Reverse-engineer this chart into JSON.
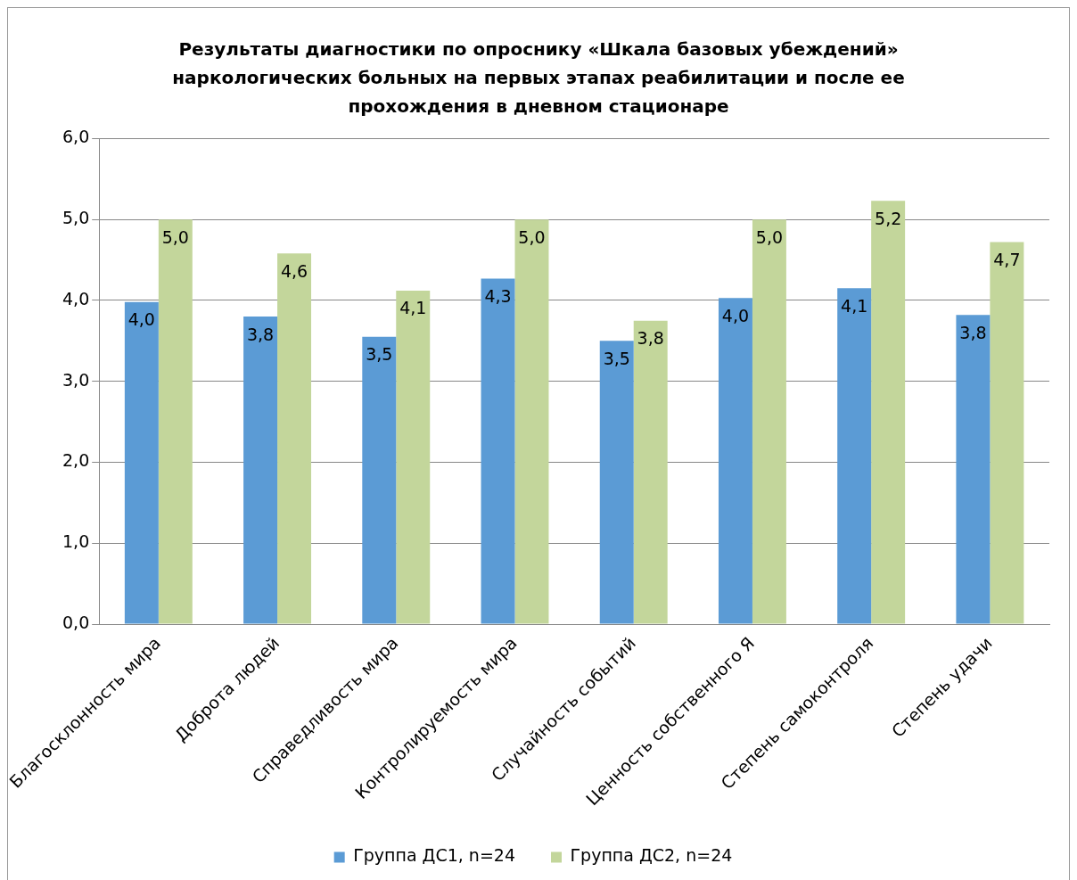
{
  "chart_data": {
    "type": "bar",
    "title": "Результаты диагностики по опроснику «Шкала базовых убеждений» наркологических больных на первых этапах реабилитации и после ее прохождения в дневном стационаре",
    "categories": [
      "Благосклонность мира",
      "Доброта людей",
      "Справедливость мира",
      "Контролируемость мира",
      "Случайность событий",
      "Ценность собственного Я",
      "Степень самоконтроля",
      "Степень удачи"
    ],
    "series": [
      {
        "name": "Группа ДС1, n=24",
        "color": "#5b9bd5",
        "values": [
          3.98,
          3.8,
          3.55,
          4.27,
          3.5,
          4.03,
          4.15,
          3.82
        ],
        "value_labels": [
          "4,0",
          "3,8",
          "3,5",
          "4,3",
          "3,5",
          "4,0",
          "4,1",
          "3,8"
        ]
      },
      {
        "name": "Группа ДС2, n=24",
        "color": "#c3d69b",
        "values": [
          5.0,
          4.58,
          4.12,
          5.0,
          3.75,
          5.0,
          5.23,
          4.72
        ],
        "value_labels": [
          "5,0",
          "4,6",
          "4,1",
          "5,0",
          "3,8",
          "5,0",
          "5,2",
          "4,7"
        ]
      }
    ],
    "ylim": [
      0,
      6
    ],
    "yticks": [
      {
        "value": 0,
        "label": "0,0"
      },
      {
        "value": 1,
        "label": "1,0"
      },
      {
        "value": 2,
        "label": "2,0"
      },
      {
        "value": 3,
        "label": "3,0"
      },
      {
        "value": 4,
        "label": "4,0"
      },
      {
        "value": 5,
        "label": "5,0"
      },
      {
        "value": 6,
        "label": "6,0"
      }
    ],
    "grid": "y",
    "legend": "bottom"
  }
}
